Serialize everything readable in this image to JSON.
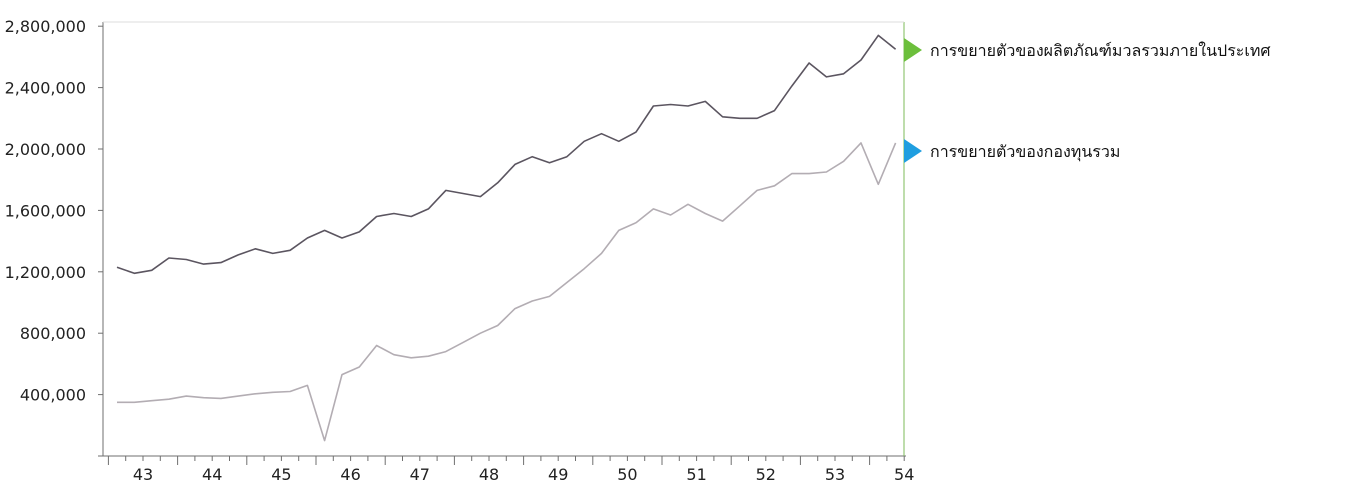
{
  "chart_data": {
    "type": "line",
    "title": "",
    "xlabel": "",
    "ylabel": "",
    "ylim": [
      0,
      2800000
    ],
    "y_ticks": [
      400000,
      800000,
      1200000,
      1600000,
      2000000,
      2400000,
      2800000
    ],
    "y_tick_labels": [
      "400,000",
      "800,000",
      "1,200,000",
      "1,600,000",
      "2,000,000",
      "2,400,000",
      "2,800,000"
    ],
    "x_tick_labels": [
      "43",
      "44",
      "45",
      "46",
      "47",
      "48",
      "49",
      "50",
      "51",
      "52",
      "53",
      "54"
    ],
    "x_start_year": 43,
    "points_per_year": 4,
    "grid": false,
    "legend_position": "right",
    "series": [
      {
        "name": "การขยายตัวของผลิตภัณฑ์มวลรวมภายในประเทศ",
        "color": "#5b5560",
        "marker_color": "#6cbf3c",
        "values": [
          1230000,
          1190000,
          1210000,
          1290000,
          1280000,
          1250000,
          1260000,
          1310000,
          1350000,
          1320000,
          1340000,
          1420000,
          1470000,
          1420000,
          1460000,
          1560000,
          1580000,
          1560000,
          1610000,
          1730000,
          1710000,
          1690000,
          1780000,
          1900000,
          1950000,
          1910000,
          1950000,
          2050000,
          2100000,
          2050000,
          2110000,
          2280000,
          2290000,
          2280000,
          2310000,
          2210000,
          2200000,
          2200000,
          2250000,
          2410000,
          2560000,
          2470000,
          2490000,
          2580000,
          2740000,
          2650000
        ]
      },
      {
        "name": "การขยายตัวของกองทุนรวม",
        "color": "#b3adb3",
        "marker_color": "#1f9ee0",
        "values": [
          350000,
          350000,
          360000,
          370000,
          390000,
          380000,
          375000,
          390000,
          405000,
          415000,
          420000,
          460000,
          100000,
          530000,
          580000,
          720000,
          660000,
          640000,
          650000,
          680000,
          740000,
          800000,
          850000,
          960000,
          1010000,
          1040000,
          1130000,
          1220000,
          1320000,
          1470000,
          1520000,
          1610000,
          1570000,
          1640000,
          1580000,
          1530000,
          1630000,
          1730000,
          1760000,
          1840000,
          1840000,
          1850000,
          1920000,
          2040000,
          1770000,
          2040000
        ]
      }
    ]
  }
}
